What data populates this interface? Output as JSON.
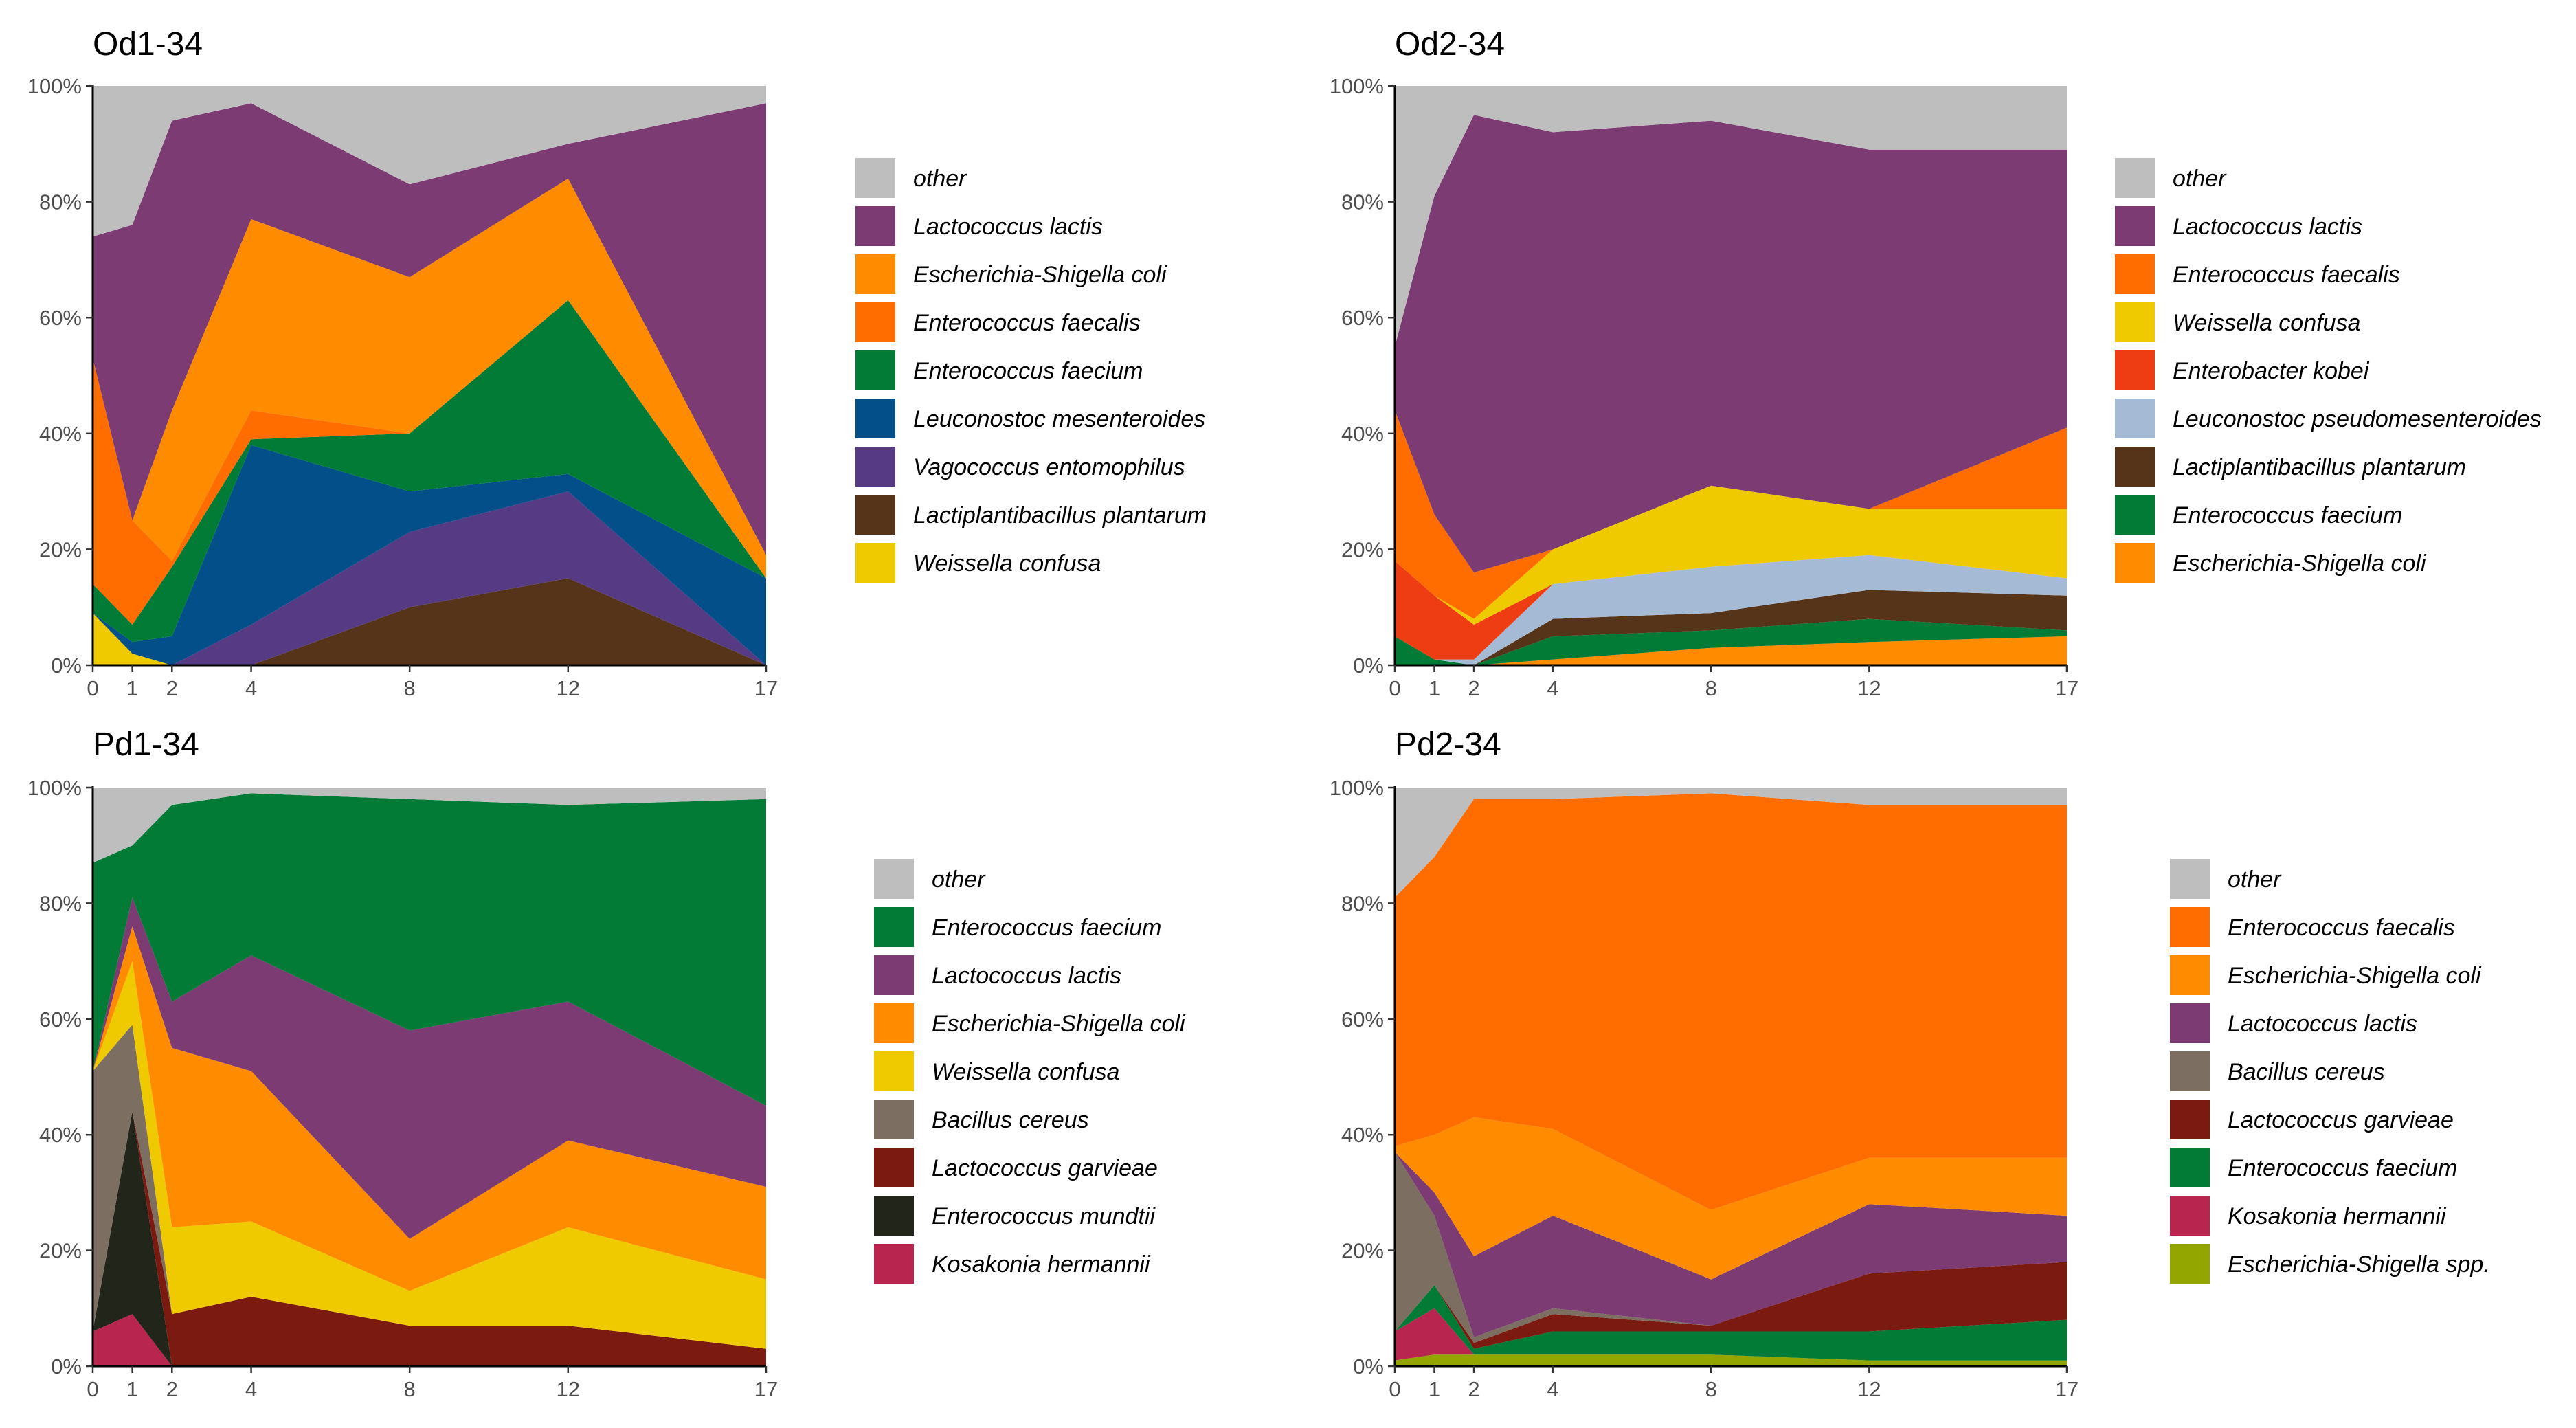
{
  "chart_data": [
    {
      "type": "area",
      "stacked": true,
      "title": "Od1-34",
      "xlabel": "",
      "ylabel": "",
      "x": [
        0,
        1,
        2,
        4,
        8,
        12,
        17
      ],
      "xlim": [
        0,
        17
      ],
      "ylim": [
        0,
        100
      ],
      "yticks": [
        "0%",
        "20%",
        "40%",
        "60%",
        "80%",
        "100%"
      ],
      "legend_position": "right",
      "series": [
        {
          "name": "Weissella confusa",
          "color": "#F0CA00",
          "values": [
            9,
            2,
            0,
            0,
            0,
            0,
            0
          ]
        },
        {
          "name": "Lactiplantibacillus plantarum",
          "color": "#56341A",
          "values": [
            0,
            0,
            0,
            0,
            10,
            15,
            0
          ]
        },
        {
          "name": "Vagococcus entomophilus",
          "color": "#563A84",
          "values": [
            0,
            0,
            0,
            7,
            13,
            15,
            0
          ]
        },
        {
          "name": "Leuconostoc mesenteroides",
          "color": "#024F8A",
          "values": [
            0,
            2,
            5,
            31,
            7,
            3,
            15
          ]
        },
        {
          "name": "Enterococcus faecium",
          "color": "#027B36",
          "values": [
            5,
            3,
            12,
            1,
            10,
            30,
            0
          ]
        },
        {
          "name": "Enterococcus faecalis",
          "color": "#FF6D00",
          "values": [
            39,
            18,
            1,
            5,
            0,
            0,
            0
          ]
        },
        {
          "name": "Escherichia-Shigella coli",
          "color": "#FF8C00",
          "values": [
            0,
            0,
            26,
            33,
            27,
            21,
            4
          ]
        },
        {
          "name": "Lactococcus lactis",
          "color": "#7C3B72",
          "values": [
            21,
            51,
            50,
            20,
            16,
            6,
            78
          ]
        },
        {
          "name": "other",
          "color": "#BEBEBE",
          "values": [
            26,
            24,
            6,
            3,
            17,
            10,
            3
          ]
        }
      ],
      "legend": [
        "other",
        "Lactococcus lactis",
        "Escherichia-Shigella coli",
        "Enterococcus faecalis",
        "Enterococcus faecium",
        "Leuconostoc mesenteroides",
        "Vagococcus entomophilus",
        "Lactiplantibacillus plantarum",
        "Weissella confusa"
      ]
    },
    {
      "type": "area",
      "stacked": true,
      "title": "Od2-34",
      "xlabel": "",
      "ylabel": "",
      "x": [
        0,
        1,
        2,
        4,
        8,
        12,
        17
      ],
      "xlim": [
        0,
        17
      ],
      "ylim": [
        0,
        100
      ],
      "yticks": [
        "0%",
        "20%",
        "40%",
        "60%",
        "80%",
        "100%"
      ],
      "legend_position": "right",
      "series": [
        {
          "name": "Escherichia-Shigella coli",
          "color": "#FF8C00",
          "values": [
            0,
            0,
            0,
            1,
            3,
            4,
            5
          ]
        },
        {
          "name": "Enterococcus faecium",
          "color": "#027B36",
          "values": [
            5,
            1,
            0,
            4,
            3,
            4,
            1
          ]
        },
        {
          "name": "Lactiplantibacillus plantarum",
          "color": "#56341A",
          "values": [
            0,
            0,
            0,
            3,
            3,
            5,
            6
          ]
        },
        {
          "name": "Leuconostoc pseudomesenteroides",
          "color": "#A5BBD5",
          "values": [
            0,
            0,
            1,
            6,
            8,
            6,
            3
          ]
        },
        {
          "name": "Enterobacter kobei",
          "color": "#EE3D12",
          "values": [
            13,
            11,
            6,
            0,
            0,
            0,
            0
          ]
        },
        {
          "name": "Weissella confusa",
          "color": "#F0CA00",
          "values": [
            0,
            0,
            1,
            6,
            14,
            8,
            12
          ]
        },
        {
          "name": "Enterococcus faecalis",
          "color": "#FF6D00",
          "values": [
            26,
            14,
            8,
            0,
            0,
            0,
            14
          ]
        },
        {
          "name": "Lactococcus lactis",
          "color": "#7C3B72",
          "values": [
            11,
            55,
            79,
            72,
            63,
            62,
            48
          ]
        },
        {
          "name": "other",
          "color": "#BEBEBE",
          "values": [
            45,
            19,
            5,
            8,
            6,
            11,
            11
          ]
        }
      ],
      "legend": [
        "other",
        "Lactococcus lactis",
        "Enterococcus faecalis",
        "Weissella confusa",
        "Enterobacter kobei",
        "Leuconostoc pseudomesenteroides",
        "Lactiplantibacillus plantarum",
        "Enterococcus faecium",
        "Escherichia-Shigella coli"
      ]
    },
    {
      "type": "area",
      "stacked": true,
      "title": "Pd1-34",
      "xlabel": "",
      "ylabel": "",
      "x": [
        0,
        1,
        2,
        4,
        8,
        12,
        17
      ],
      "xlim": [
        0,
        17
      ],
      "ylim": [
        0,
        100
      ],
      "yticks": [
        "0%",
        "20%",
        "40%",
        "60%",
        "80%",
        "100%"
      ],
      "legend_position": "right",
      "series": [
        {
          "name": "Kosakonia hermannii",
          "color": "#B8264F",
          "values": [
            6,
            9,
            0,
            0,
            0,
            0,
            0
          ]
        },
        {
          "name": "Enterococcus mundtii",
          "color": "#22261A",
          "values": [
            0,
            35,
            0,
            0,
            0,
            0,
            0
          ]
        },
        {
          "name": "Lactococcus garvieae",
          "color": "#7B1A10",
          "values": [
            0,
            0,
            9,
            12,
            7,
            7,
            3
          ]
        },
        {
          "name": "Bacillus cereus",
          "color": "#7D6E62",
          "values": [
            45,
            15,
            0,
            0,
            0,
            0,
            0
          ]
        },
        {
          "name": "Weissella confusa",
          "color": "#F0CA00",
          "values": [
            0,
            11,
            15,
            13,
            6,
            17,
            12
          ]
        },
        {
          "name": "Escherichia-Shigella coli",
          "color": "#FF8C00",
          "values": [
            0,
            6,
            31,
            26,
            9,
            15,
            16
          ]
        },
        {
          "name": "Lactococcus lactis",
          "color": "#7C3B72",
          "values": [
            0,
            5,
            8,
            20,
            36,
            24,
            14
          ]
        },
        {
          "name": "Enterococcus faecium",
          "color": "#027B36",
          "values": [
            36,
            9,
            34,
            28,
            40,
            34,
            53
          ]
        },
        {
          "name": "other",
          "color": "#BEBEBE",
          "values": [
            13,
            10,
            3,
            1,
            2,
            3,
            2
          ]
        }
      ],
      "legend": [
        "other",
        "Enterococcus faecium",
        "Lactococcus lactis",
        "Escherichia-Shigella coli",
        "Weissella confusa",
        "Bacillus cereus",
        "Lactococcus garvieae",
        "Enterococcus mundtii",
        "Kosakonia hermannii"
      ]
    },
    {
      "type": "area",
      "stacked": true,
      "title": "Pd2-34",
      "xlabel": "",
      "ylabel": "",
      "x": [
        0,
        1,
        2,
        4,
        8,
        12,
        17
      ],
      "xlim": [
        0,
        17
      ],
      "ylim": [
        0,
        100
      ],
      "yticks": [
        "0%",
        "20%",
        "40%",
        "60%",
        "80%",
        "100%"
      ],
      "legend_position": "right",
      "series": [
        {
          "name": "Escherichia-Shigella spp.",
          "color": "#93A600",
          "values": [
            1,
            2,
            2,
            2,
            2,
            1,
            1
          ]
        },
        {
          "name": "Kosakonia hermannii",
          "color": "#B8264F",
          "values": [
            5,
            8,
            0,
            0,
            0,
            0,
            0
          ]
        },
        {
          "name": "Enterococcus faecium",
          "color": "#027B36",
          "values": [
            0,
            4,
            1,
            4,
            4,
            5,
            7
          ]
        },
        {
          "name": "Lactococcus garvieae",
          "color": "#7B1A10",
          "values": [
            0,
            0,
            1,
            3,
            1,
            10,
            10
          ]
        },
        {
          "name": "Bacillus cereus",
          "color": "#7D6E62",
          "values": [
            31,
            12,
            1,
            1,
            0,
            0,
            0
          ]
        },
        {
          "name": "Lactococcus lactis",
          "color": "#7C3B72",
          "values": [
            0,
            4,
            14,
            16,
            8,
            12,
            8
          ]
        },
        {
          "name": "Escherichia-Shigella coli",
          "color": "#FF8C00",
          "values": [
            1,
            10,
            24,
            15,
            12,
            8,
            10
          ]
        },
        {
          "name": "Enterococcus faecalis",
          "color": "#FF6D00",
          "values": [
            43,
            48,
            55,
            57,
            72,
            61,
            61
          ]
        },
        {
          "name": "other",
          "color": "#BEBEBE",
          "values": [
            19,
            12,
            2,
            2,
            1,
            3,
            3
          ]
        }
      ],
      "legend": [
        "other",
        "Enterococcus faecalis",
        "Escherichia-Shigella coli",
        "Lactococcus lactis",
        "Bacillus cereus",
        "Lactococcus garvieae",
        "Enterococcus faecium",
        "Kosakonia hermannii",
        "Escherichia-Shigella spp."
      ]
    }
  ]
}
